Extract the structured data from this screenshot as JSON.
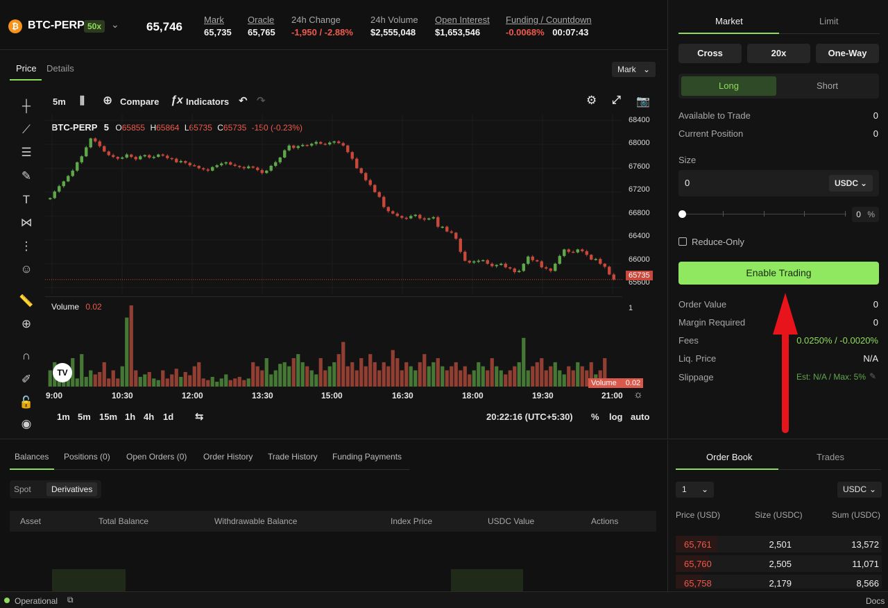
{
  "header": {
    "symbol": "BTC-PERP",
    "leverage": "50x",
    "last_price": "65,746",
    "stats": [
      {
        "label": "Mark",
        "value": "65,735",
        "underline": true,
        "color": "#f2f2f2"
      },
      {
        "label": "Oracle",
        "value": "65,765",
        "underline": true,
        "color": "#f2f2f2"
      },
      {
        "label": "24h Change",
        "value": "-1,950 / -2.88%",
        "underline": false,
        "color": "#ef5a4c"
      },
      {
        "label": "24h Volume",
        "value": "$2,555,048",
        "underline": false,
        "color": "#f2f2f2"
      },
      {
        "label": "Open Interest",
        "value": "$1,653,546",
        "underline": true,
        "color": "#f2f2f2"
      }
    ],
    "funding": {
      "label": "Funding / Countdown",
      "rate": "-0.0068%",
      "countdown": "00:07:43"
    }
  },
  "chart_panel": {
    "tabs": [
      "Price",
      "Details"
    ],
    "price_source": "Mark",
    "interval": "5m",
    "compare_label": "Compare",
    "indicators_label": "Indicators",
    "legend": {
      "symbol": "BTC-PERP",
      "interval": "5",
      "o_label": "O",
      "o": "65855",
      "h_label": "H",
      "h": "65864",
      "l_label": "L",
      "l": "65735",
      "c_label": "C",
      "c": "65735",
      "change": "-150 (-0.23%)"
    },
    "volume_legend": {
      "label": "Volume",
      "value": "0.02"
    },
    "y_ticks": [
      "68400",
      "68000",
      "67600",
      "67200",
      "66800",
      "66400",
      "66000",
      "65600"
    ],
    "current_price_tag": "65735",
    "volume_axis_tick": "1",
    "volume_tag": {
      "label": "Volume",
      "value": "0.02"
    },
    "x_ticks": [
      "9:00",
      "10:30",
      "12:00",
      "13:30",
      "15:00",
      "16:30",
      "18:00",
      "19:30",
      "21:00"
    ],
    "timeframes": [
      "1m",
      "5m",
      "15m",
      "1h",
      "4h",
      "1d"
    ],
    "clock": "20:22:16 (UTC+5:30)",
    "scale_options": [
      "%",
      "log",
      "auto"
    ],
    "tradingview_logo": "TV"
  },
  "chart_data": {
    "type": "candlestick",
    "title": "BTC-PERP · 5",
    "x_range": [
      "9:00",
      "21:00"
    ],
    "ylim": [
      65500,
      68500
    ],
    "price_closes": [
      67100,
      67210,
      67300,
      67380,
      67470,
      67560,
      67700,
      67800,
      67950,
      68100,
      68050,
      67970,
      67880,
      67820,
      67790,
      67760,
      67780,
      67830,
      67790,
      67750,
      67800,
      67820,
      67780,
      67790,
      67830,
      67810,
      67770,
      67760,
      67700,
      67720,
      67690,
      67650,
      67640,
      67600,
      67580,
      67560,
      67620,
      67650,
      67680,
      67700,
      67660,
      67640,
      67620,
      67600,
      67630,
      67610,
      67570,
      67520,
      67560,
      67640,
      67700,
      67780,
      67900,
      67980,
      67940,
      67970,
      67990,
      67980,
      68010,
      68040,
      68010,
      68000,
      68030,
      68050,
      68020,
      67980,
      67870,
      67760,
      67600,
      67520,
      67400,
      67320,
      67200,
      67120,
      66950,
      66880,
      66840,
      66800,
      66770,
      66760,
      66800,
      66820,
      66760,
      66740,
      66760,
      66780,
      66620,
      66620,
      66540,
      66520,
      66420,
      66200,
      66050,
      66020,
      66040,
      66050,
      66060,
      66000,
      65960,
      65980,
      66000,
      65940,
      65920,
      65860,
      65880,
      66000,
      66120,
      66060,
      66040,
      65940,
      65920,
      65880,
      66000,
      66130,
      66240,
      66200,
      66190,
      66240,
      66210,
      66150,
      66070,
      66080,
      66000,
      65950,
      65820,
      65735
    ],
    "volume_bars": [
      0.2,
      0.3,
      0.15,
      0.25,
      0.2,
      0.35,
      0.1,
      0.4,
      0.12,
      0.2,
      0.15,
      0.18,
      0.3,
      0.1,
      0.2,
      0.1,
      0.25,
      0.85,
      1.0,
      0.2,
      0.12,
      0.15,
      0.18,
      0.1,
      0.08,
      0.2,
      0.1,
      0.15,
      0.22,
      0.12,
      0.18,
      0.14,
      0.25,
      0.3,
      0.1,
      0.08,
      0.12,
      0.06,
      0.1,
      0.15,
      0.08,
      0.1,
      0.12,
      0.08,
      0.1,
      0.3,
      0.25,
      0.2,
      0.35,
      0.15,
      0.2,
      0.28,
      0.3,
      0.25,
      0.35,
      0.4,
      0.3,
      0.25,
      0.2,
      0.15,
      0.35,
      0.2,
      0.25,
      0.3,
      0.4,
      0.55,
      0.25,
      0.3,
      0.2,
      0.35,
      0.25,
      0.4,
      0.3,
      0.2,
      0.3,
      0.25,
      0.45,
      0.35,
      0.2,
      0.3,
      0.25,
      0.2,
      0.3,
      0.4,
      0.25,
      0.3,
      0.35,
      0.25,
      0.2,
      0.25,
      0.3,
      0.2,
      0.25,
      0.15,
      0.2,
      0.3,
      0.25,
      0.2,
      0.35,
      0.25,
      0.2,
      0.15,
      0.2,
      0.25,
      0.3,
      0.6,
      0.2,
      0.25,
      0.3,
      0.35,
      0.2,
      0.25,
      0.3,
      0.2,
      0.15,
      0.25,
      0.2,
      0.3,
      0.25,
      0.2,
      0.3,
      0.15,
      0.2,
      0.35,
      0.1,
      0.02
    ]
  },
  "bottom_panel": {
    "tabs": [
      "Balances",
      "Positions (0)",
      "Open Orders (0)",
      "Order History",
      "Trade History",
      "Funding Payments"
    ],
    "segments": [
      "Spot",
      "Derivatives"
    ],
    "columns": [
      "Asset",
      "Total Balance",
      "Withdrawable Balance",
      "Index Price",
      "USDC Value",
      "Actions"
    ]
  },
  "trade_panel": {
    "order_types": [
      "Market",
      "Limit"
    ],
    "margin_mode": "Cross",
    "leverage": "20x",
    "position_mode": "One-Way",
    "sides": [
      "Long",
      "Short"
    ],
    "available_label": "Available to Trade",
    "available_value": "0",
    "position_label": "Current Position",
    "position_value": "0",
    "size_label": "Size",
    "size_value": "0",
    "size_unit": "USDC",
    "slider_value": "0",
    "slider_unit": "%",
    "reduce_only_label": "Reduce-Only",
    "enable_button": "Enable Trading",
    "order_value_label": "Order Value",
    "order_value": "0",
    "margin_label": "Margin Required",
    "margin_value": "0",
    "fees_label": "Fees",
    "fees_value": "0.0250% / -0.0020%",
    "liq_label": "Liq. Price",
    "liq_value": "N/A",
    "slippage_label": "Slippage",
    "slippage_value": "Est: N/A / Max: 5%"
  },
  "order_book": {
    "tabs": [
      "Order Book",
      "Trades"
    ],
    "grouping": "1",
    "unit": "USDC",
    "columns": [
      "Price (USD)",
      "Size (USDC)",
      "Sum (USDC)"
    ],
    "asks": [
      {
        "price": "65,761",
        "size": "2,501",
        "sum": "13,572"
      },
      {
        "price": "65,760",
        "size": "2,505",
        "sum": "11,071"
      },
      {
        "price": "65,758",
        "size": "2,179",
        "sum": "8,566"
      }
    ]
  },
  "status_bar": {
    "status": "Operational",
    "docs": "Docs"
  },
  "colors": {
    "accent": "#8fdc5a",
    "up": "#5fa84a",
    "down": "#c8483b",
    "annotation_arrow": "#e8141c"
  }
}
